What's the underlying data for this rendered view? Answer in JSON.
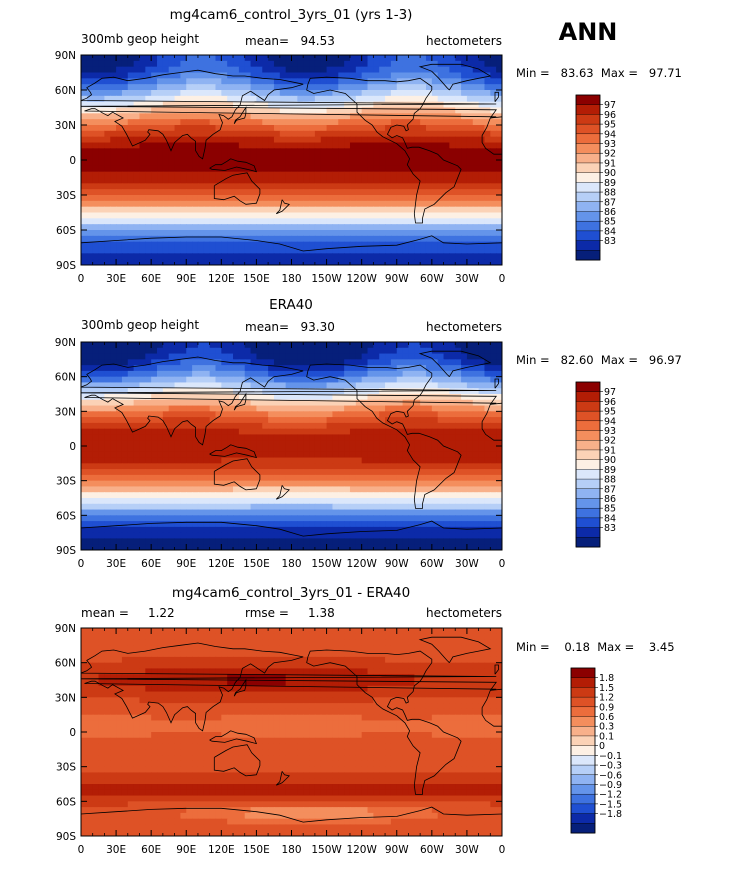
{
  "season_label": "ANN",
  "chart_data": [
    {
      "type": "heatmap",
      "title": "mg4cam6_control_3yrs_01 (yrs 1-3)",
      "left_label": "300mb geop height",
      "center_label": "mean=   94.53",
      "right_label": "hectometers",
      "minmax_label": "Min =   83.63  Max =   97.71",
      "x_ticks": [
        "0",
        "30E",
        "60E",
        "90E",
        "120E",
        "150E",
        "180",
        "150W",
        "120W",
        "90W",
        "60W",
        "30W",
        "0"
      ],
      "y_ticks": [
        "90N",
        "60N",
        "30N",
        "0",
        "30S",
        "60S",
        "90S"
      ],
      "xlim": [
        0,
        360
      ],
      "ylim": [
        -90,
        90
      ],
      "field": "geopotential",
      "colorbar_labels": [
        "97",
        "96",
        "95",
        "94",
        "93",
        "92",
        "91",
        "90",
        "89",
        "88",
        "87",
        "86",
        "85",
        "84",
        "83"
      ],
      "colorbar_colors": [
        "#8b0000",
        "#b31d05",
        "#cc3a14",
        "#de5226",
        "#ec6d3c",
        "#f48e5d",
        "#f8b08a",
        "#fbd2b6",
        "#fdf0e4",
        "#dbe7fb",
        "#b6cff7",
        "#8fb3f2",
        "#6494ea",
        "#3e72e0",
        "#1f4fd2",
        "#0c2aa8",
        "#061f7a"
      ],
      "params": {
        "max": 97.71,
        "min": 83.63,
        "asym": 0
      }
    },
    {
      "type": "heatmap",
      "title": "ERA40",
      "left_label": "300mb geop height",
      "center_label": "mean=   93.30",
      "right_label": "hectometers",
      "minmax_label": "Min =   82.60  Max =   96.97",
      "x_ticks": [
        "0",
        "30E",
        "60E",
        "90E",
        "120E",
        "150E",
        "180",
        "150W",
        "120W",
        "90W",
        "60W",
        "30W",
        "0"
      ],
      "y_ticks": [
        "90N",
        "60N",
        "30N",
        "0",
        "30S",
        "60S",
        "90S"
      ],
      "xlim": [
        0,
        360
      ],
      "ylim": [
        -90,
        90
      ],
      "field": "geopotential",
      "colorbar_labels": [
        "97",
        "96",
        "95",
        "94",
        "93",
        "92",
        "91",
        "90",
        "89",
        "88",
        "87",
        "86",
        "85",
        "84",
        "83"
      ],
      "colorbar_colors": [
        "#8b0000",
        "#b31d05",
        "#cc3a14",
        "#de5226",
        "#ec6d3c",
        "#f48e5d",
        "#f8b08a",
        "#fbd2b6",
        "#fdf0e4",
        "#dbe7fb",
        "#b6cff7",
        "#8fb3f2",
        "#6494ea",
        "#3e72e0",
        "#1f4fd2",
        "#0c2aa8",
        "#061f7a"
      ],
      "params": {
        "max": 96.97,
        "min": 82.6,
        "asym": 0.4
      }
    },
    {
      "type": "heatmap",
      "title": "mg4cam6_control_3yrs_01 - ERA40",
      "left_label": "mean =     1.22",
      "center_label": "rmse =     1.38",
      "right_label": "hectometers",
      "minmax_label": "Min =    0.18  Max =    3.45",
      "x_ticks": [
        "0",
        "30E",
        "60E",
        "90E",
        "120E",
        "150E",
        "180",
        "150W",
        "120W",
        "90W",
        "60W",
        "30W",
        "0"
      ],
      "y_ticks": [
        "90N",
        "60N",
        "30N",
        "0",
        "30S",
        "60S",
        "90S"
      ],
      "xlim": [
        0,
        360
      ],
      "ylim": [
        -90,
        90
      ],
      "field": "difference",
      "colorbar_labels": [
        "1.8",
        "1.5",
        "1.2",
        "0.9",
        "0.6",
        "0.3",
        "0.1",
        "0",
        "−0.1",
        "−0.3",
        "−0.6",
        "−0.9",
        "−1.2",
        "−1.5",
        "−1.8"
      ],
      "colorbar_colors": [
        "#8b0000",
        "#b31d05",
        "#cc3a14",
        "#de5226",
        "#ec6d3c",
        "#f48e5d",
        "#f8b08a",
        "#fbd2b6",
        "#fdf0e4",
        "#dbe7fb",
        "#b6cff7",
        "#8fb3f2",
        "#6494ea",
        "#3e72e0",
        "#1f4fd2",
        "#0c2aa8",
        "#061f7a"
      ],
      "params": {
        "max": 3.45,
        "min": 0.18,
        "asym": 0
      }
    }
  ]
}
